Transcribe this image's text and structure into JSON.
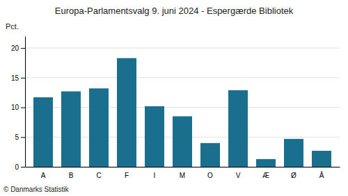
{
  "chart_data": {
    "type": "bar",
    "title": "Europa-Parlamentsvalg 9. juni 2024 - Espergærde Bibliotek",
    "ylabel": "Pct.",
    "annotations": [
      "© Danmarks Statistik"
    ],
    "categories": [
      "A",
      "B",
      "C",
      "F",
      "I",
      "M",
      "O",
      "V",
      "Æ",
      "Ø",
      "Å"
    ],
    "values": [
      11.7,
      12.7,
      13.2,
      18.3,
      10.2,
      8.5,
      4.0,
      12.9,
      1.3,
      4.7,
      2.7
    ],
    "color": "#1a6e8e",
    "ylim": [
      0,
      22
    ],
    "yticks": [
      0,
      5,
      10,
      15,
      20
    ],
    "grid": true
  }
}
